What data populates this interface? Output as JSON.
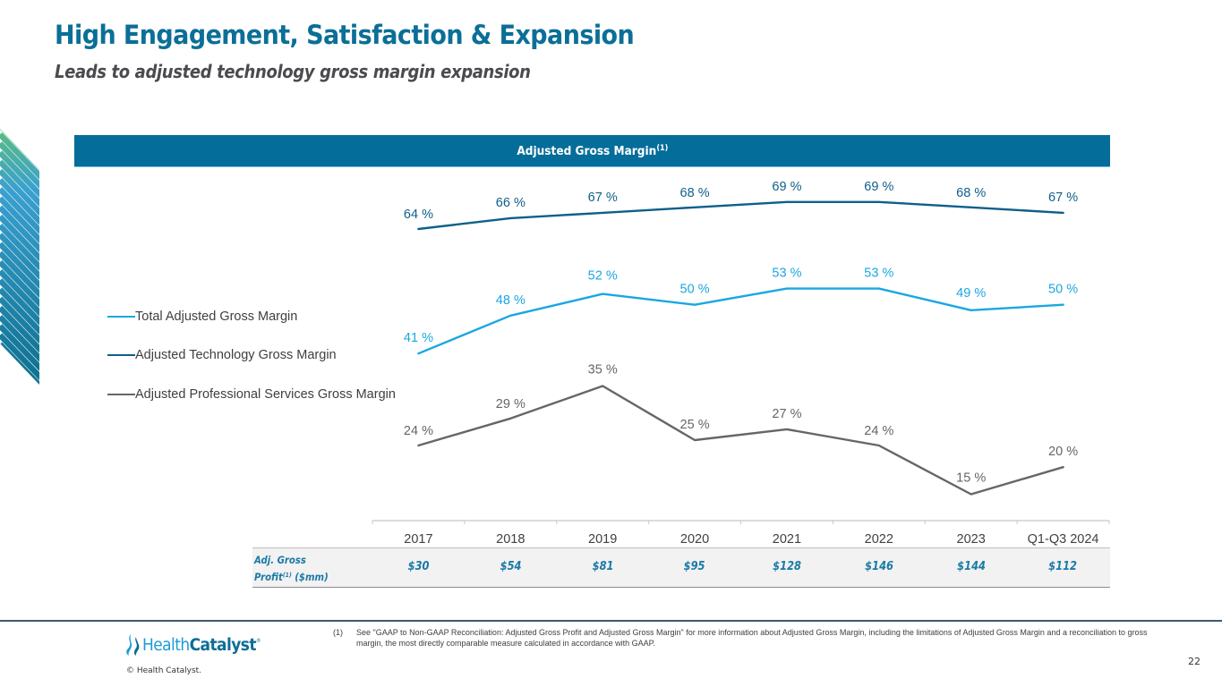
{
  "slide": {
    "title": "High Engagement, Satisfaction & Expansion",
    "subtitle": "Leads to adjusted technology gross margin expansion",
    "page_number": "22"
  },
  "chart_header": {
    "label": "Adjusted Gross Margin",
    "superscript": "(1)"
  },
  "colors": {
    "brand_blue": "#046d9a",
    "total": "#1aa7e0",
    "technology": "#0e5f8a",
    "professional_services": "#666666",
    "table_text": "#1b7aa6"
  },
  "chart_data": {
    "type": "line",
    "title": "Adjusted Gross Margin(1)",
    "xlabel": "",
    "ylabel": "",
    "ylim": [
      0,
      75
    ],
    "grid": false,
    "legend_position": "left",
    "value_suffix": " %",
    "categories": [
      "2017",
      "2018",
      "2019",
      "2020",
      "2021",
      "2022",
      "2023",
      "Q1-Q3 2024"
    ],
    "series": [
      {
        "key": "total",
        "name": "Total Adjusted Gross Margin",
        "color": "#1aa7e0",
        "values": [
          41,
          48,
          52,
          50,
          53,
          53,
          49,
          50
        ]
      },
      {
        "key": "technology",
        "name": "Adjusted Technology Gross Margin",
        "color": "#0e5f8a",
        "values": [
          64,
          66,
          67,
          68,
          69,
          69,
          68,
          67
        ]
      },
      {
        "key": "professional_services",
        "name": "Adjusted Professional Services Gross Margin",
        "color": "#666666",
        "values": [
          24,
          29,
          35,
          25,
          27,
          24,
          15,
          20
        ]
      }
    ]
  },
  "gross_profit_table": {
    "label_line1": "Adj. Gross",
    "label_line2": "Profit",
    "label_superscript": "(1)",
    "label_unit": " ($mm)",
    "values": [
      "$30",
      "$54",
      "$81",
      "$95",
      "$128",
      "$146",
      "$144",
      "$112"
    ]
  },
  "footer": {
    "logo_health": "Health",
    "logo_catalyst": "Catalyst",
    "logo_tm": "®",
    "copyright": "© Health Catalyst.",
    "footnote_number": "(1)",
    "footnote_text": "See \"GAAP to Non-GAAP Reconciliation: Adjusted Gross Profit and Adjusted Gross Margin\" for more information about Adjusted Gross Margin, including the limitations of Adjusted Gross Margin and a reconciliation to gross margin, the most directly comparable measure calculated in accordance with GAAP."
  }
}
